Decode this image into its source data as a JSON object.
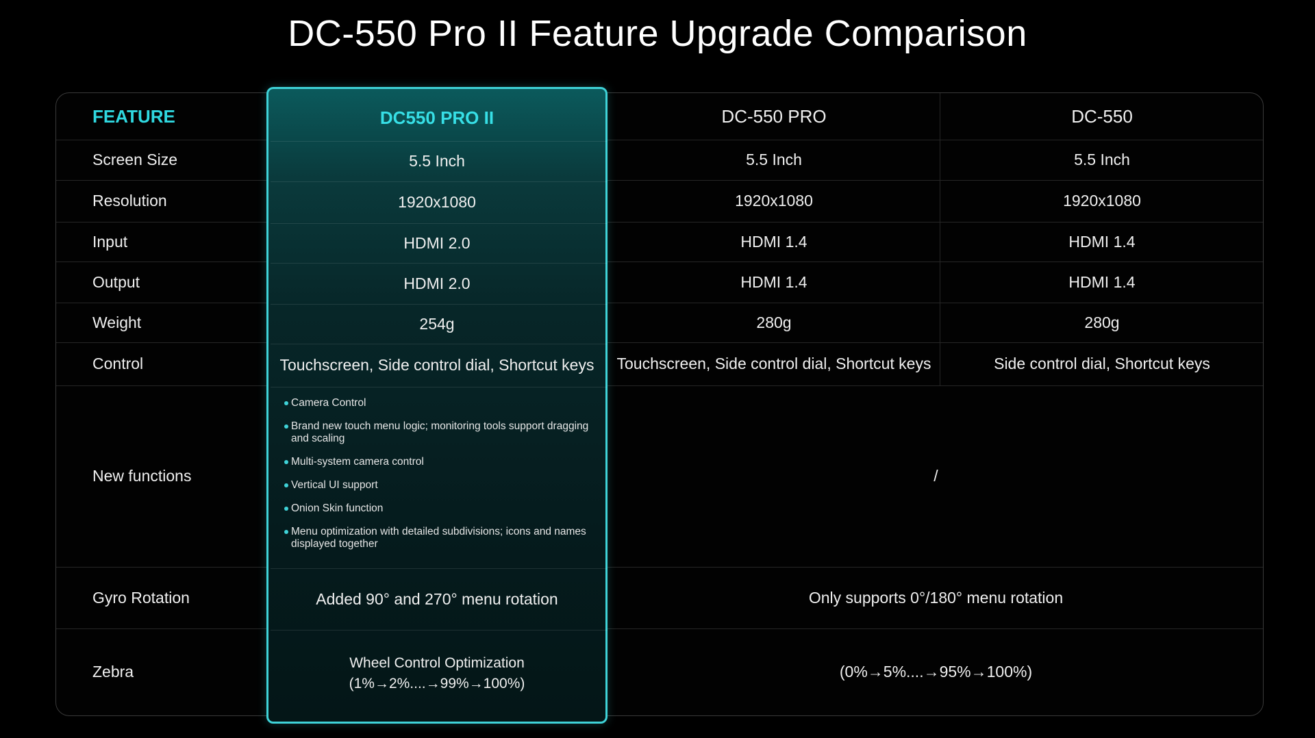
{
  "title": "DC-550 Pro II Feature Upgrade Comparison",
  "accent_color": "#3fd3d8",
  "headers": {
    "feature": "FEATURE",
    "pro2": "DC550 PRO II",
    "pro": "DC-550 PRO",
    "base": "DC-550"
  },
  "rows": {
    "screen_size": {
      "label": "Screen Size",
      "pro2": "5.5 Inch",
      "pro": "5.5 Inch",
      "base": "5.5 Inch"
    },
    "resolution": {
      "label": "Resolution",
      "pro2": "1920x1080",
      "pro": "1920x1080",
      "base": "1920x1080"
    },
    "input": {
      "label": "Input",
      "pro2": "HDMI 2.0",
      "pro": "HDMI 1.4",
      "base": "HDMI 1.4"
    },
    "output": {
      "label": "Output",
      "pro2": "HDMI 2.0",
      "pro": "HDMI 1.4",
      "base": "HDMI 1.4"
    },
    "weight": {
      "label": "Weight",
      "pro2": "254g",
      "pro": "280g",
      "base": "280g"
    },
    "control": {
      "label": "Control",
      "pro2": "Touchscreen, Side control dial, Shortcut keys",
      "pro": "Touchscreen, Side control dial, Shortcut keys",
      "base": "Side control dial, Shortcut keys"
    },
    "new_functions": {
      "label": "New functions",
      "pro2_items": [
        "Camera Control",
        "Brand new touch menu logic; monitoring tools support dragging and scaling",
        "Multi-system camera control",
        "Vertical UI support",
        "Onion Skin function",
        "Menu optimization with detailed subdivisions; icons and names displayed together"
      ],
      "others": "/"
    },
    "gyro": {
      "label": "Gyro Rotation",
      "pro2": "Added 90° and 270° menu rotation",
      "others": "Only supports 0°/180° menu rotation"
    },
    "zebra": {
      "label": "Zebra",
      "pro2_line1": "Wheel Control Optimization",
      "pro2_line2": "(1%→2%....→99%→100%)",
      "others": "(0%→5%....→95%→100%)"
    }
  }
}
